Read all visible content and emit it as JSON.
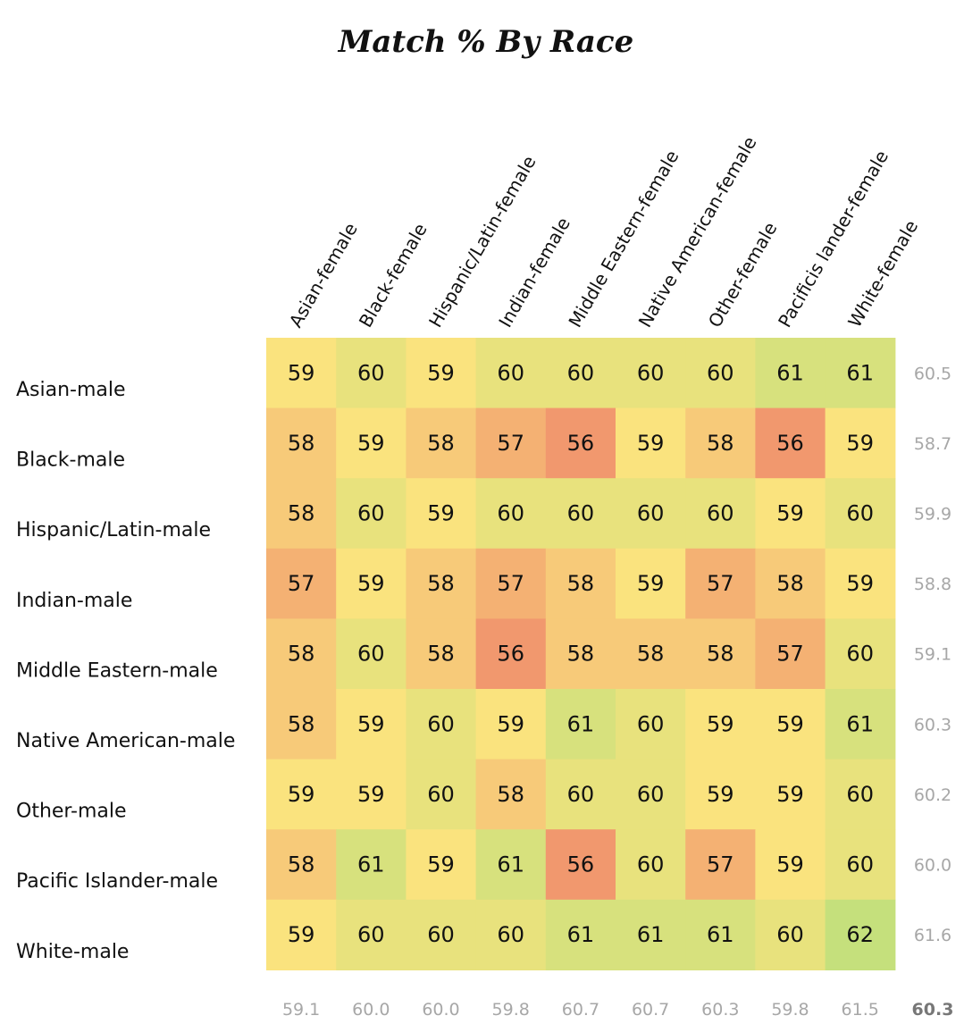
{
  "chart_data": {
    "type": "heatmap",
    "title": "Match % By Race",
    "columns": [
      "Asian-female",
      "Black-female",
      "Hispanic/Latin-female",
      "Indian-female",
      "Middle Eastern-female",
      "Native American-female",
      "Other-female",
      "Pacificis lander-female",
      "White-female"
    ],
    "rows": [
      "Asian-male",
      "Black-male",
      "Hispanic/Latin-male",
      "Indian-male",
      "Middle Eastern-male",
      "Native American-male",
      "Other-male",
      "Pacific Islander-male",
      "White-male"
    ],
    "values": [
      [
        59,
        60,
        59,
        60,
        60,
        60,
        60,
        61,
        61
      ],
      [
        58,
        59,
        58,
        57,
        56,
        59,
        58,
        56,
        59
      ],
      [
        58,
        60,
        59,
        60,
        60,
        60,
        60,
        59,
        60
      ],
      [
        57,
        59,
        58,
        57,
        58,
        59,
        57,
        58,
        59
      ],
      [
        58,
        60,
        58,
        56,
        58,
        58,
        58,
        57,
        60
      ],
      [
        58,
        59,
        60,
        59,
        61,
        60,
        59,
        59,
        61
      ],
      [
        59,
        59,
        60,
        58,
        60,
        60,
        59,
        59,
        60
      ],
      [
        58,
        61,
        59,
        61,
        56,
        60,
        57,
        59,
        60
      ],
      [
        59,
        60,
        60,
        60,
        61,
        61,
        61,
        60,
        62
      ]
    ],
    "row_totals": [
      "60.5",
      "58.7",
      "59.9",
      "58.8",
      "59.1",
      "60.3",
      "60.2",
      "60.0",
      "61.6"
    ],
    "column_totals": [
      "59.1",
      "60.0",
      "60.0",
      "59.8",
      "60.7",
      "60.7",
      "60.3",
      "59.8",
      "61.5"
    ],
    "grand_total": "60.3",
    "color_scale": {
      "low": "#f1986e",
      "mid": "#fae37e",
      "high": "#c5e07c"
    },
    "color_range": [
      56,
      62
    ]
  }
}
